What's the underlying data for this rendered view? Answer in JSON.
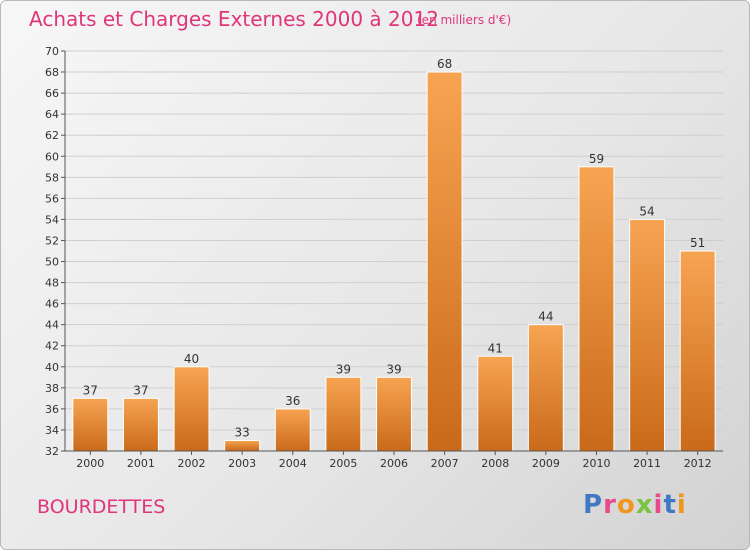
{
  "header": {
    "title": "Achats et Charges Externes 2000 à 2012",
    "unit_note": "(en milliers d'€)"
  },
  "footer": {
    "commune": "BOURDETTES",
    "logo_text": "Proxiti"
  },
  "colors": {
    "title": "#e0357a",
    "bar_light": "#f7a452",
    "bar_dark": "#c96a1a",
    "logo_letters": [
      "#3f79c4",
      "#e84a8a",
      "#f0951e",
      "#7cc242",
      "#e84a8a",
      "#3f79c4",
      "#f0951e"
    ]
  },
  "chart_data": {
    "type": "bar",
    "title": "Achats et Charges Externes 2000 à 2012",
    "subtitle": "(en milliers d'€)",
    "categories": [
      "2000",
      "2001",
      "2002",
      "2003",
      "2004",
      "2005",
      "2006",
      "2007",
      "2008",
      "2009",
      "2010",
      "2011",
      "2012"
    ],
    "values": [
      37,
      37,
      40,
      33,
      36,
      39,
      39,
      68,
      41,
      44,
      59,
      54,
      51
    ],
    "data_labels": [
      "37",
      "37",
      "40",
      "33",
      "36",
      "39",
      "39",
      "68",
      "41",
      "44",
      "59",
      "54",
      "51"
    ],
    "ylim": [
      32,
      70
    ],
    "yticks": [
      "32",
      "34",
      "36",
      "38",
      "40",
      "42",
      "44",
      "46",
      "48",
      "50",
      "52",
      "54",
      "56",
      "58",
      "60",
      "62",
      "64",
      "66",
      "68",
      "70"
    ],
    "grid": true,
    "xlabel": "",
    "ylabel": ""
  }
}
